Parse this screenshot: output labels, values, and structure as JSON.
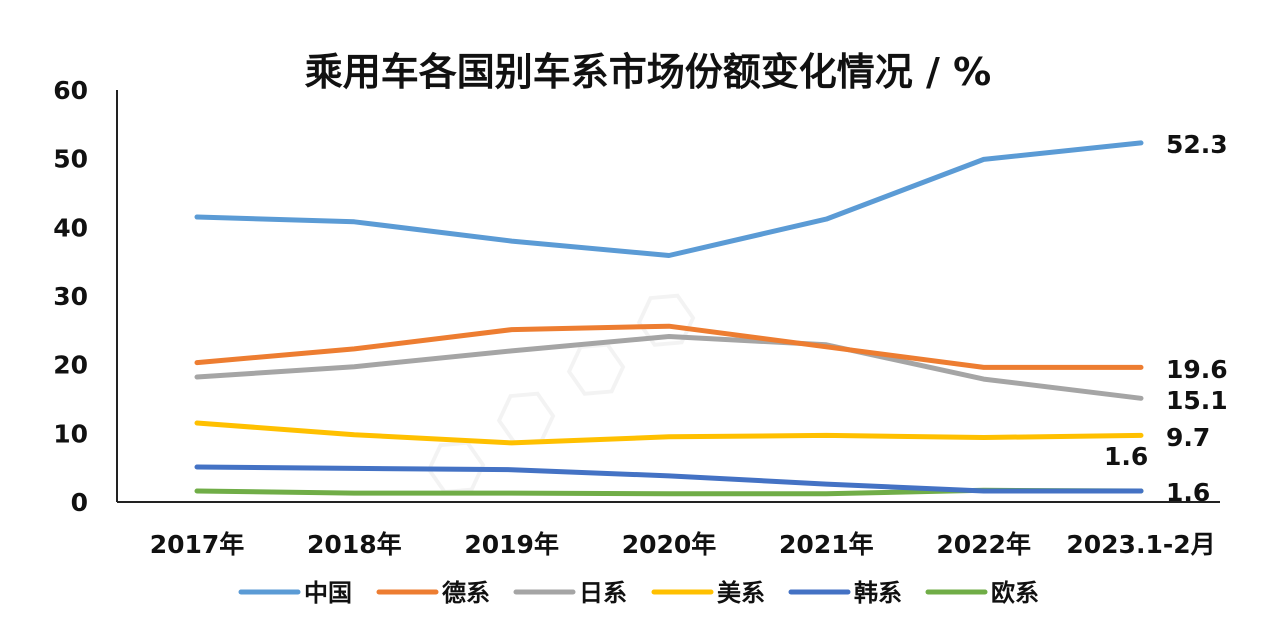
{
  "chart_data": {
    "type": "line",
    "title": "乘用车各国别车系市场份额变化情况 / %",
    "categories": [
      "2017年",
      "2018年",
      "2019年",
      "2020年",
      "2021年",
      "2022年",
      "2023.1-2月"
    ],
    "ylim": [
      0,
      60
    ],
    "yticks": [
      0,
      10,
      20,
      30,
      40,
      50,
      60
    ],
    "grid": false,
    "legend_position": "bottom",
    "series": [
      {
        "name": "中国",
        "color": "#5B9BD5",
        "values": [
          41.5,
          40.8,
          38.0,
          35.9,
          41.2,
          49.9,
          52.3
        ],
        "end_label": "52.3"
      },
      {
        "name": "德系",
        "color": "#ED7D31",
        "values": [
          20.3,
          22.3,
          25.1,
          25.6,
          22.6,
          19.6,
          19.6
        ],
        "end_label": "19.6"
      },
      {
        "name": "日系",
        "color": "#A5A5A5",
        "values": [
          18.2,
          19.7,
          22.0,
          24.1,
          22.9,
          17.9,
          15.1
        ],
        "end_label": "15.1"
      },
      {
        "name": "美系",
        "color": "#FFC000",
        "values": [
          11.5,
          9.8,
          8.6,
          9.5,
          9.7,
          9.4,
          9.7
        ],
        "end_label": "9.7"
      },
      {
        "name": "韩系",
        "color": "#4472C4",
        "values": [
          5.1,
          4.9,
          4.7,
          3.8,
          2.6,
          1.6,
          1.6
        ],
        "end_label": "1.6"
      },
      {
        "name": "欧系",
        "color": "#70AD47",
        "values": [
          1.6,
          1.3,
          1.3,
          1.2,
          1.2,
          1.7,
          1.6
        ],
        "end_label": "1.6"
      }
    ]
  }
}
